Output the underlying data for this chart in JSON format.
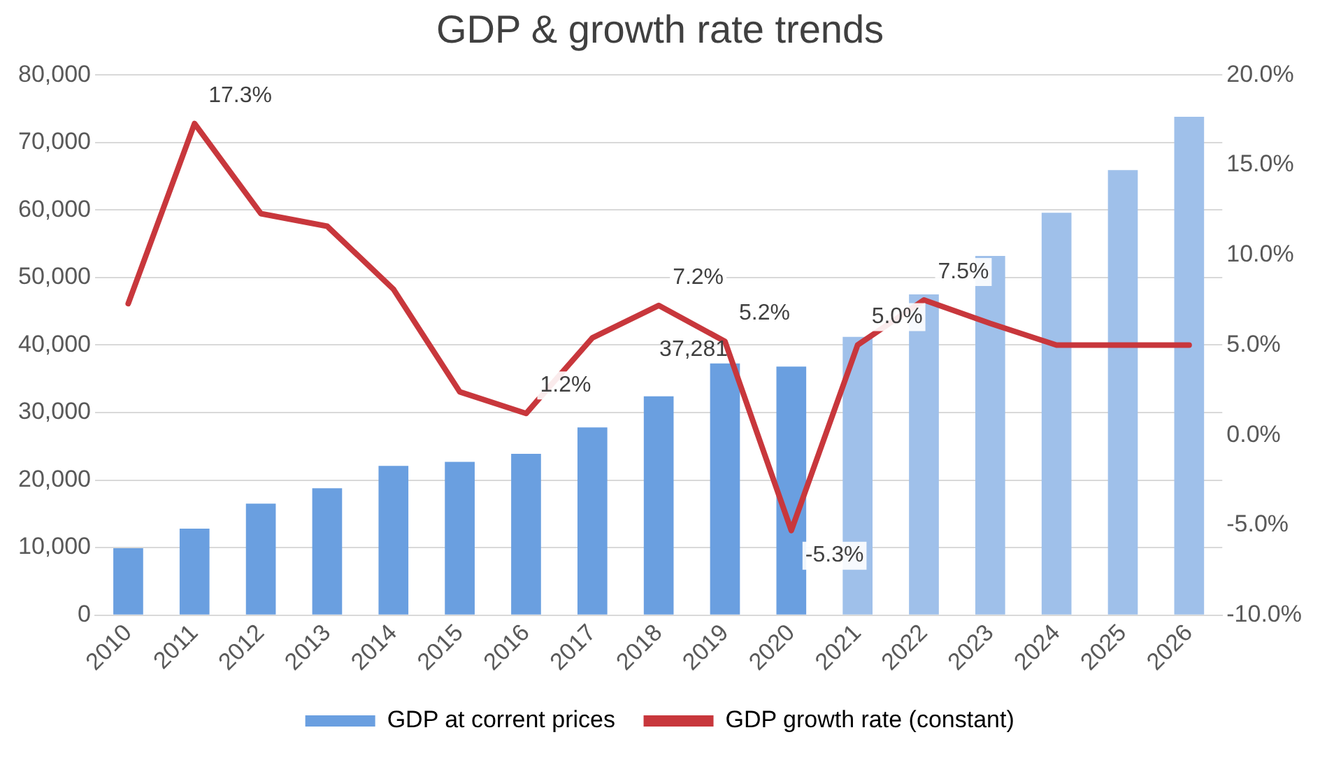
{
  "chart_data": {
    "type": "bar",
    "title": "GDP & growth rate trends",
    "categories": [
      "2010",
      "2011",
      "2012",
      "2013",
      "2014",
      "2015",
      "2016",
      "2017",
      "2018",
      "2019",
      "2020",
      "2021",
      "2022",
      "2023",
      "2024",
      "2025",
      "2026"
    ],
    "series": [
      {
        "name": "GDP at corrent prices",
        "colors": [
          "#6a9fe0",
          "#6a9fe0",
          "#6a9fe0",
          "#6a9fe0",
          "#6a9fe0",
          "#6a9fe0",
          "#6a9fe0",
          "#6a9fe0",
          "#6a9fe0",
          "#6a9fe0",
          "#6a9fe0",
          "#9fc0ea",
          "#9fc0ea",
          "#9fc0ea",
          "#9fc0ea",
          "#9fc0ea",
          "#9fc0ea"
        ],
        "values": [
          9900,
          12800,
          16500,
          18800,
          22100,
          22700,
          23900,
          27800,
          32400,
          37281,
          36800,
          41200,
          47500,
          53200,
          59600,
          65900,
          73800
        ],
        "value_labels": [
          null,
          null,
          null,
          null,
          null,
          null,
          null,
          null,
          null,
          "37,281",
          null,
          null,
          null,
          null,
          null,
          null,
          null
        ]
      },
      {
        "name": "GDP growth rate (constant)",
        "type": "line",
        "axis": "y2",
        "color": "#c8373c",
        "values": [
          7.3,
          17.3,
          12.3,
          11.6,
          8.1,
          2.4,
          1.2,
          5.4,
          7.2,
          5.2,
          -5.3,
          5.0,
          7.5,
          6.2,
          5.0,
          5.0,
          5.0
        ],
        "value_labels": [
          null,
          "17.3%",
          null,
          null,
          null,
          null,
          "1.2%",
          null,
          "7.2%",
          "5.2%",
          "-5.3%",
          "5.0%",
          "7.5%",
          null,
          null,
          null,
          null
        ]
      }
    ],
    "ylim": [
      0,
      80000
    ],
    "yticks": [
      {
        "value": 0,
        "label": "0"
      },
      {
        "value": 10000,
        "label": "10,000"
      },
      {
        "value": 20000,
        "label": "20,000"
      },
      {
        "value": 30000,
        "label": "30,000"
      },
      {
        "value": 40000,
        "label": "40,000"
      },
      {
        "value": 50000,
        "label": "50,000"
      },
      {
        "value": 60000,
        "label": "60,000"
      },
      {
        "value": 70000,
        "label": "70,000"
      },
      {
        "value": 80000,
        "label": "80,000"
      }
    ],
    "y2lim": [
      -10,
      20
    ],
    "y2ticks": [
      {
        "value": -10,
        "label": "-10.0%"
      },
      {
        "value": -5,
        "label": "-5.0%"
      },
      {
        "value": 0,
        "label": "0.0%"
      },
      {
        "value": 5,
        "label": "5.0%"
      },
      {
        "value": 10,
        "label": "10.0%"
      },
      {
        "value": 15,
        "label": "15.0%"
      },
      {
        "value": 20,
        "label": "20.0%"
      }
    ],
    "grid": "y",
    "legend": "bottom",
    "marker": "none",
    "line_style": "solid"
  }
}
